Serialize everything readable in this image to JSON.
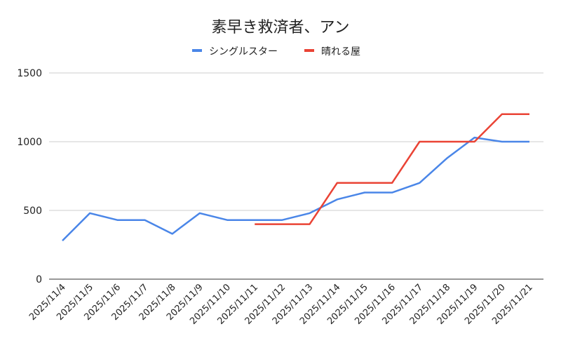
{
  "chart_data": {
    "type": "line",
    "title": "素早き救済者、アン",
    "xlabel": "",
    "ylabel": "",
    "ylim": [
      0,
      1500
    ],
    "yticks": [
      0,
      500,
      1000,
      1500
    ],
    "grid": true,
    "legend_position": "top",
    "categories": [
      "2025/11/4",
      "2025/11/5",
      "2025/11/6",
      "2025/11/7",
      "2025/11/8",
      "2025/11/9",
      "2025/11/10",
      "2025/11/11",
      "2025/11/12",
      "2025/11/13",
      "2025/11/14",
      "2025/11/15",
      "2025/11/16",
      "2025/11/17",
      "2025/11/18",
      "2025/11/19",
      "2025/11/20",
      "2025/11/21"
    ],
    "series": [
      {
        "name": "シングルスター",
        "color": "#4a86e8",
        "values": [
          280,
          480,
          430,
          430,
          330,
          480,
          430,
          430,
          430,
          480,
          580,
          630,
          630,
          700,
          880,
          1030,
          1000,
          1000
        ]
      },
      {
        "name": "晴れる屋",
        "color": "#ea4335",
        "values": [
          null,
          null,
          null,
          null,
          null,
          null,
          null,
          400,
          400,
          400,
          700,
          700,
          700,
          1000,
          1000,
          1000,
          1200,
          1200
        ]
      }
    ]
  }
}
